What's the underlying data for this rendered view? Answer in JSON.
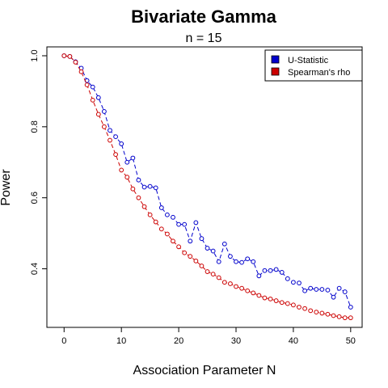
{
  "chart_data": {
    "type": "line",
    "title": "Bivariate Gamma",
    "subtitle": "n = 15",
    "xlabel": "Association Parameter N",
    "ylabel": "Power",
    "xlim": [
      -3,
      52
    ],
    "ylim": [
      0.235,
      1.025
    ],
    "xticks": [
      0,
      10,
      20,
      30,
      40,
      50
    ],
    "yticks": [
      0.4,
      0.6,
      0.8,
      1.0
    ],
    "ytick_labels": [
      "0.4",
      "0.6",
      "0.8",
      "1.0"
    ],
    "legend": {
      "placement": "top-right"
    },
    "x": [
      0,
      1,
      2,
      3,
      4,
      5,
      6,
      7,
      8,
      9,
      10,
      11,
      12,
      13,
      14,
      15,
      16,
      17,
      18,
      19,
      20,
      21,
      22,
      23,
      24,
      25,
      26,
      27,
      28,
      29,
      30,
      31,
      32,
      33,
      34,
      35,
      36,
      37,
      38,
      39,
      40,
      41,
      42,
      43,
      44,
      45,
      46,
      47,
      48,
      49,
      50
    ],
    "series": [
      {
        "name": "U-Statistic",
        "color": "#0000cc",
        "style": "dashed-line-with-open-circles",
        "values": [
          1.0,
          0.998,
          0.983,
          0.965,
          0.93,
          0.912,
          0.882,
          0.843,
          0.79,
          0.772,
          0.752,
          0.7,
          0.712,
          0.65,
          0.63,
          0.632,
          0.628,
          0.572,
          0.552,
          0.545,
          0.525,
          0.525,
          0.478,
          0.53,
          0.485,
          0.458,
          0.45,
          0.42,
          0.47,
          0.435,
          0.42,
          0.418,
          0.428,
          0.42,
          0.38,
          0.395,
          0.395,
          0.398,
          0.39,
          0.372,
          0.362,
          0.36,
          0.338,
          0.345,
          0.342,
          0.342,
          0.34,
          0.32,
          0.345,
          0.335,
          0.292
        ]
      },
      {
        "name": "Spearman's rho",
        "color": "#cc0000",
        "style": "dashed-line-with-open-circles",
        "values": [
          1.0,
          0.998,
          0.982,
          0.955,
          0.918,
          0.875,
          0.835,
          0.8,
          0.762,
          0.722,
          0.678,
          0.658,
          0.625,
          0.6,
          0.575,
          0.552,
          0.532,
          0.512,
          0.498,
          0.478,
          0.462,
          0.445,
          0.435,
          0.422,
          0.408,
          0.392,
          0.385,
          0.375,
          0.362,
          0.358,
          0.35,
          0.345,
          0.338,
          0.332,
          0.325,
          0.318,
          0.315,
          0.31,
          0.305,
          0.302,
          0.298,
          0.292,
          0.288,
          0.282,
          0.278,
          0.275,
          0.272,
          0.268,
          0.265,
          0.262,
          0.262
        ]
      }
    ]
  }
}
